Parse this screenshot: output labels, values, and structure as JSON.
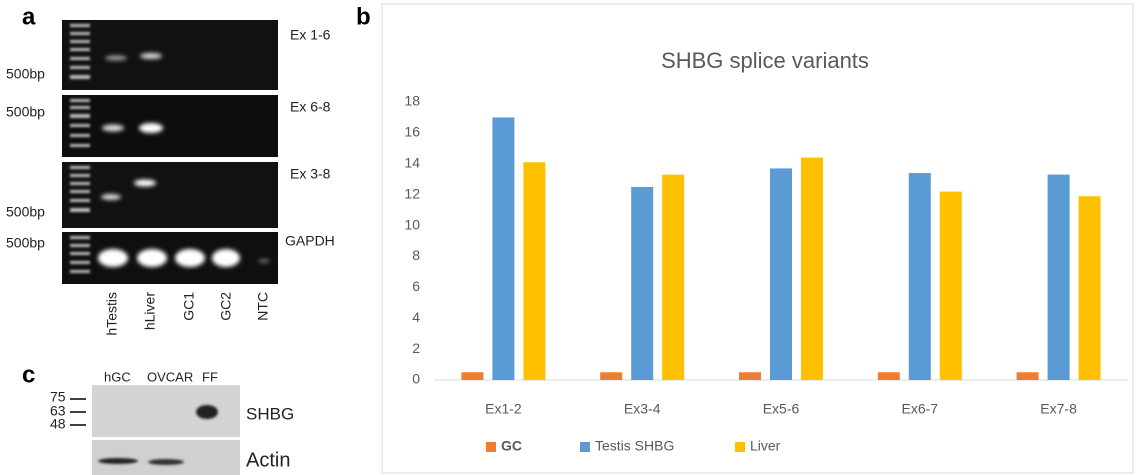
{
  "panel_labels": [
    "a",
    "b",
    "c"
  ],
  "panel_a": {
    "gels": [
      {
        "label": "Ex 1-6",
        "marker": "500bp"
      },
      {
        "label": "Ex 6-8",
        "marker": "500bp"
      },
      {
        "label": "Ex 3-8",
        "marker": "500bp"
      },
      {
        "label": "GAPDH",
        "marker": "500bp"
      }
    ],
    "lanes": [
      "hTestis",
      "hLiver",
      "GC1",
      "GC2",
      "NTC"
    ]
  },
  "panel_c": {
    "lanes": [
      "hGC",
      "OVCAR",
      "FF"
    ],
    "markers": [
      "75",
      "63",
      "48"
    ],
    "blots": [
      "SHBG",
      "Actin"
    ]
  },
  "chart_data": {
    "type": "bar",
    "title": "SHBG splice variants",
    "categories": [
      "Ex1-2",
      "Ex3-4",
      "Ex5-6",
      "Ex6-7",
      "Ex7-8"
    ],
    "series": [
      {
        "name": "GC",
        "color": "#ed7d31",
        "values": [
          0.5,
          0.5,
          0.5,
          0.5,
          0.5
        ]
      },
      {
        "name": "Testis SHBG",
        "color": "#5b9bd5",
        "values": [
          17,
          12.5,
          13.7,
          13.4,
          13.3
        ]
      },
      {
        "name": "Liver",
        "color": "#ffc000",
        "values": [
          14.1,
          13.3,
          14.4,
          12.2,
          11.9
        ]
      }
    ],
    "ylim": [
      0,
      18
    ],
    "yticks": [
      0,
      2,
      4,
      6,
      8,
      10,
      12,
      14,
      16,
      18
    ],
    "grid": false,
    "legend": "bottom"
  }
}
